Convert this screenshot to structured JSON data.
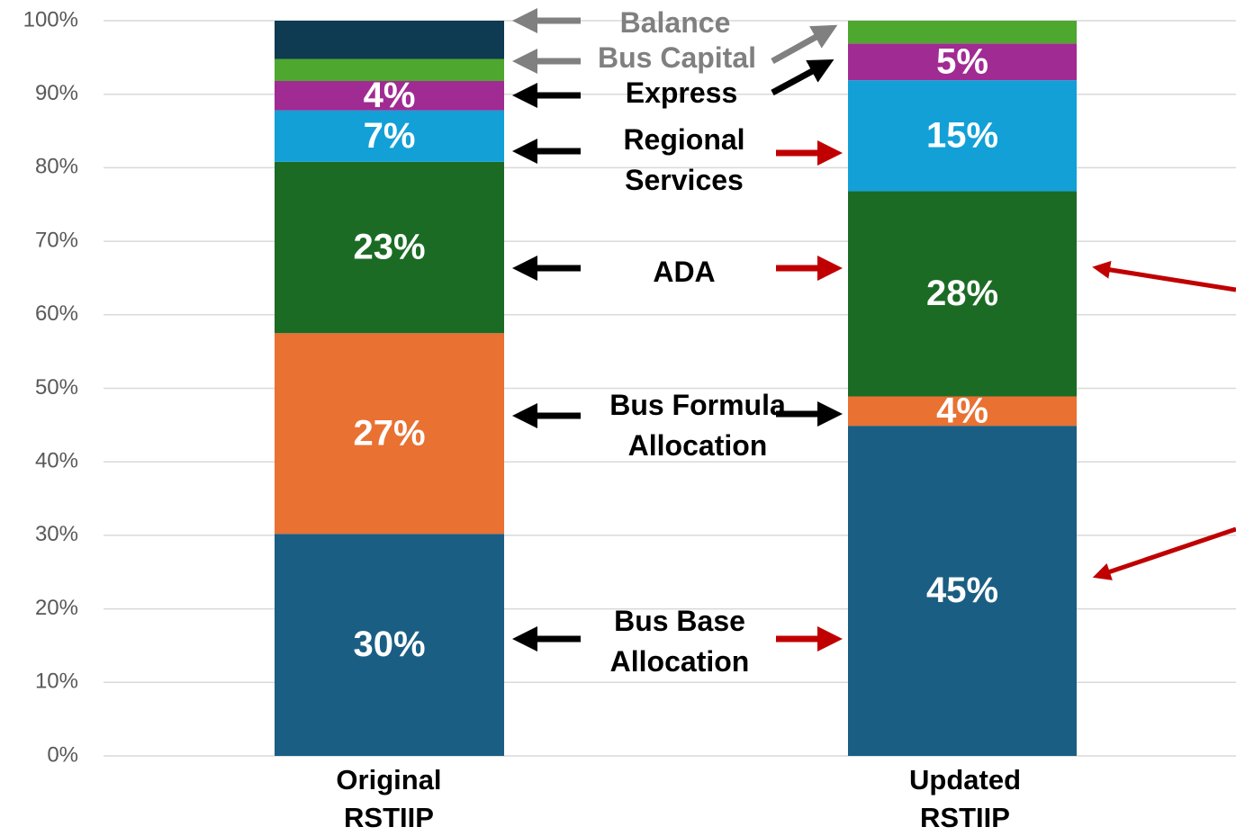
{
  "chart_data": {
    "type": "stacked_bar",
    "categories": [
      "Original RSTIIP",
      "Updated RSTIIP"
    ],
    "series": [
      {
        "name": "Bus Base Allocation",
        "color": "#1a5e83",
        "values": [
          30.2,
          44.9
        ],
        "value_labels": [
          "30%",
          "45%"
        ]
      },
      {
        "name": "Bus Formula Allocation",
        "color": "#e97132",
        "values": [
          27.3,
          4.0
        ],
        "value_labels": [
          "27%",
          "4%"
        ]
      },
      {
        "name": "ADA",
        "color": "#1b6b24",
        "values": [
          23.3,
          27.9
        ],
        "value_labels": [
          "23%",
          "28%"
        ]
      },
      {
        "name": "Regional Services",
        "color": "#12a0d7",
        "values": [
          7.0,
          15.1
        ],
        "value_labels": [
          "7%",
          "15%"
        ]
      },
      {
        "name": "Express",
        "color": "#a02b93",
        "values": [
          4.0,
          5.0
        ],
        "value_labels": [
          "4%",
          "5%"
        ]
      },
      {
        "name": "Bus Capital",
        "color": "#4ea72e",
        "values": [
          3.0,
          3.1
        ]
      },
      {
        "name": "Balance",
        "color": "#0e3a52",
        "values": [
          5.2,
          0
        ]
      }
    ],
    "ylim": [
      0,
      100
    ],
    "yticks": [
      {
        "value": 0,
        "label": "0%"
      },
      {
        "value": 10,
        "label": "10%"
      },
      {
        "value": 20,
        "label": "20%"
      },
      {
        "value": 30,
        "label": "30%"
      },
      {
        "value": 40,
        "label": "40%"
      },
      {
        "value": 50,
        "label": "50%"
      },
      {
        "value": 60,
        "label": "60%"
      },
      {
        "value": 70,
        "label": "70%"
      },
      {
        "value": 80,
        "label": "80%"
      },
      {
        "value": 90,
        "label": "90%"
      },
      {
        "value": 100,
        "label": "100%"
      }
    ],
    "grid": true
  }
}
